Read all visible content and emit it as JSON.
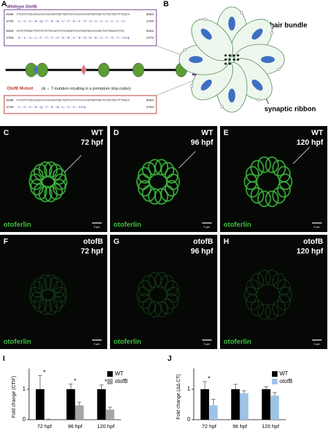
{
  "panel_a": {
    "label": "A",
    "wildtype": {
      "title": "Wildtype OtofB",
      "lines": [
        {
          "start": "5195",
          "seq": "CTCGTCTGCAACCAATACAAGTGGCTGGTCATCAAAATAGTGGTGGCTCTGCTGCTTTAGCA",
          "end": "5253"
        },
        {
          "start": "1733",
          "seq": "-L--V--C--N--Q--Y--K--W--L--V--K--I--V--V--A--L--L--L--L--A-",
          "end": "1753"
        },
        {
          "start": "5254",
          "seq": "GATCTGGGCTTGTTCTGTACAGTATCCAGGGTACATGGTGAAAAAGCTACTGGGACTGA",
          "end": "5322"
        },
        {
          "start": "1754",
          "seq": "-D--L--G--L--F--C--T--V--S--R--V--H--G--E--K--A--T--G--T--stop",
          "end": "1773"
        }
      ]
    },
    "mutant": {
      "title": "OtofB Mutant",
      "note": "(A → T mutation resulting in a premature stop codon)",
      "lines": [
        {
          "start": "5195",
          "seq": "CTCGTCTGCAACCAATACAAGTGGCTGGTCATCTAAATAGTGGTGGCTCTGCTGCTTTAGCA",
          "end": "5253"
        },
        {
          "start": "1733",
          "seq": "-L--V--C--N--Q--Y--K--W--L--V--I--stop",
          "end": "1753"
        }
      ]
    }
  },
  "panel_b": {
    "label": "B",
    "hair_bundle": "hair bundle",
    "synaptic_ribbon": "synaptic ribbon"
  },
  "micrographs": [
    {
      "label": "C",
      "genotype": "WT",
      "stage": "72 hpf",
      "stain": "otoferlin",
      "scale": "5 µm"
    },
    {
      "label": "D",
      "genotype": "WT",
      "stage": "96 hpf",
      "stain": "otoferlin",
      "scale": "5 µm"
    },
    {
      "label": "E",
      "genotype": "WT",
      "stage": "120 hpf",
      "stain": "otoferlin",
      "scale": "5 µm"
    },
    {
      "label": "F",
      "genotype": "otofB",
      "stage": "72 hpf",
      "stain": "otoferlin",
      "scale": "5 µm"
    },
    {
      "label": "G",
      "genotype": "otofB",
      "stage": "96 hpf",
      "stain": "otoferlin",
      "scale": "5 µm"
    },
    {
      "label": "H",
      "genotype": "otofB",
      "stage": "120 hpf",
      "stain": "otoferlin",
      "scale": "5 µm"
    }
  ],
  "chart_data": [
    {
      "type": "bar",
      "label": "I",
      "ylabel": "Fold change (CTIF)",
      "categories": [
        "72 hpf",
        "96 hpf",
        "120 hpf"
      ],
      "series": [
        {
          "name": "WT",
          "color": "#000000",
          "values": [
            1,
            1,
            1
          ],
          "errors": [
            0.45,
            0.17,
            0.14
          ]
        },
        {
          "name": "otofB",
          "color": "#a6a6a6",
          "values": [
            0.02,
            0.47,
            0.33
          ],
          "errors": [
            0,
            0.1,
            0.08
          ]
        }
      ],
      "significance": [
        "*",
        "*",
        "*"
      ],
      "ylim": [
        0,
        1.5
      ],
      "yticks": [
        0,
        1
      ],
      "legend": "upper right"
    },
    {
      "type": "bar",
      "label": "J",
      "ylabel": "Fold change (ΔΔ CT)",
      "categories": [
        "72 hpf",
        "96 hpf",
        "120 hpf"
      ],
      "series": [
        {
          "name": "WT",
          "color": "#000000",
          "values": [
            1,
            1,
            1
          ],
          "errors": [
            0.25,
            0.16,
            0.08
          ]
        },
        {
          "name": "otofB",
          "color": "#9dc3e6",
          "values": [
            0.47,
            0.87,
            0.79
          ],
          "errors": [
            0.2,
            0.08,
            0.1
          ]
        }
      ],
      "significance": [
        "*",
        null,
        null
      ],
      "ylim": [
        0,
        1.5
      ],
      "yticks": [
        0,
        1
      ],
      "legend": "upper right"
    }
  ]
}
